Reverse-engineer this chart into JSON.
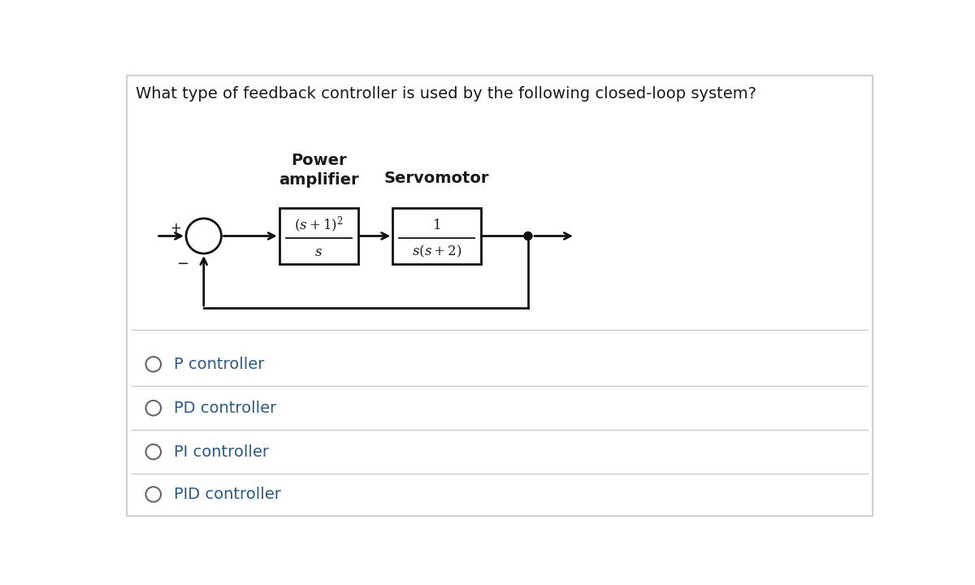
{
  "question": "What type of feedback controller is used by the following closed-loop system?",
  "bg_color": "#ffffff",
  "border_color": "#d0d0d0",
  "text_color": "#1a1a1a",
  "label_power_amplifier": "Power\namplifier",
  "label_servomotor": "Servomotor",
  "options": [
    "P controller",
    "PD controller",
    "PI controller",
    "PID controller"
  ],
  "option_text_color": "#2a5a8a",
  "divider_color": "#cccccc",
  "circle_color": "#666666",
  "question_color": "#1a1a1a",
  "box_color": "#111111",
  "arrow_color": "#111111",
  "label_fontsize": 14,
  "question_fontsize": 14,
  "option_fontsize": 14,
  "tf_fontsize": 12
}
